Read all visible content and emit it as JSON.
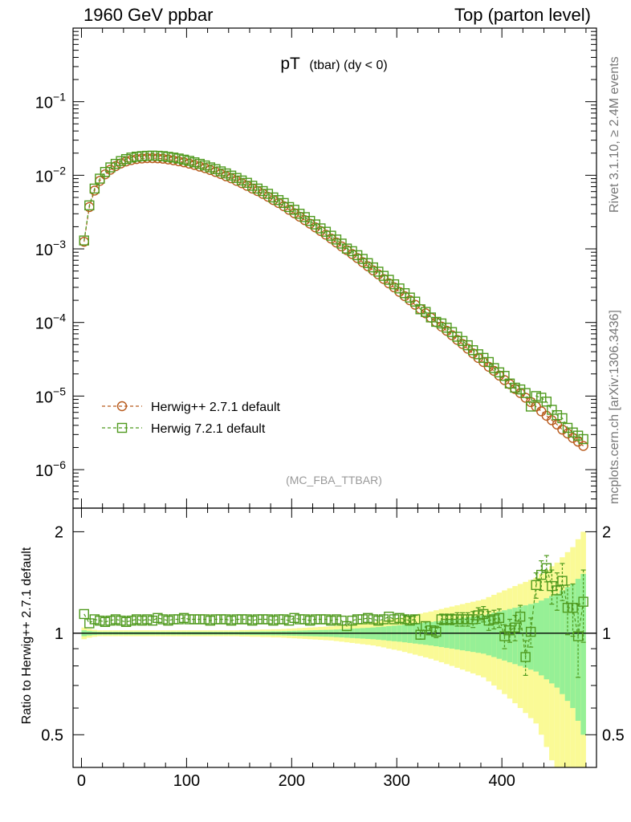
{
  "header": {
    "left": "1960 GeV ppbar",
    "right": "Top (parton level)"
  },
  "side_labels": {
    "rivet": "Rivet 3.1.10, ≥ 2.4M events",
    "mcplots": "mcplots.cern.ch [arXiv:1306.3436]"
  },
  "chart_data": {
    "type": "line",
    "title": {
      "main": "pT",
      "sub": "(tbar) (dy < 0)"
    },
    "watermark": "(MC_FBA_TTBAR)",
    "main_panel": {
      "yscale": "log",
      "ylim": [
        3e-07,
        1.0
      ],
      "ytick_values": [
        1e-06,
        1e-05,
        0.0001,
        0.001,
        0.01,
        0.1
      ],
      "ytick_labels": [
        {
          "base": "10",
          "exp": "−6"
        },
        {
          "base": "10",
          "exp": "−5"
        },
        {
          "base": "10",
          "exp": "−4"
        },
        {
          "base": "10",
          "exp": "−3"
        },
        {
          "base": "10",
          "exp": "−2"
        },
        {
          "base": "10",
          "exp": "−1"
        }
      ]
    },
    "ratio_panel": {
      "ylabel": "Ratio to Herwig++ 2.7.1 default",
      "yscale": "log",
      "ylim": [
        0.4,
        2.35
      ],
      "ytick_values": [
        0.5,
        1,
        2
      ],
      "ytick_labels": [
        "0.5",
        "1",
        "2"
      ]
    },
    "xaxis": {
      "xlim": [
        -8,
        490
      ],
      "tick_values": [
        0,
        100,
        200,
        300,
        400
      ],
      "tick_labels": [
        "0",
        "100",
        "200",
        "300",
        "400"
      ]
    },
    "colors": {
      "herwigpp": "#b85a1c",
      "herwig7": "#4f9a1e",
      "band_yellow": "#fafa96",
      "band_green": "#96f096"
    },
    "series": [
      {
        "name": "Herwig++ 2.7.1 default",
        "marker": "circle"
      },
      {
        "name": "Herwig 7.2.1 default",
        "marker": "square"
      }
    ],
    "x": [
      2.5,
      7.5,
      12.5,
      17.5,
      22.5,
      27.5,
      32.5,
      37.5,
      42.5,
      47.5,
      52.5,
      57.5,
      62.5,
      67.5,
      72.5,
      77.5,
      82.5,
      87.5,
      92.5,
      97.5,
      102.5,
      107.5,
      112.5,
      117.5,
      122.5,
      127.5,
      132.5,
      137.5,
      142.5,
      147.5,
      152.5,
      157.5,
      162.5,
      167.5,
      172.5,
      177.5,
      182.5,
      187.5,
      192.5,
      197.5,
      202.5,
      207.5,
      212.5,
      217.5,
      222.5,
      227.5,
      232.5,
      237.5,
      242.5,
      247.5,
      252.5,
      257.5,
      262.5,
      267.5,
      272.5,
      277.5,
      282.5,
      287.5,
      292.5,
      297.5,
      302.5,
      307.5,
      312.5,
      317.5,
      322.5,
      327.5,
      332.5,
      337.5,
      342.5,
      347.5,
      352.5,
      357.5,
      362.5,
      367.5,
      372.5,
      377.5,
      382.5,
      387.5,
      392.5,
      397.5,
      402.5,
      407.5,
      412.5,
      417.5,
      422.5,
      427.5,
      432.5,
      437.5,
      442.5,
      447.5,
      452.5,
      457.5,
      462.5,
      467.5,
      472.5,
      477.5
    ],
    "herwigpp_values": [
      0.00125,
      0.0037,
      0.0062,
      0.0084,
      0.0103,
      0.0119,
      0.0133,
      0.0145,
      0.0154,
      0.0161,
      0.0166,
      0.0169,
      0.0171,
      0.0171,
      0.017,
      0.0168,
      0.0164,
      0.016,
      0.0155,
      0.015,
      0.0144,
      0.0138,
      0.0131,
      0.0125,
      0.0118,
      0.0111,
      0.0104,
      0.0097,
      0.0091,
      0.0084,
      0.0078,
      0.0072,
      0.0066,
      0.0061,
      0.0056,
      0.0051,
      0.0046,
      0.0042,
      0.0038,
      0.0034,
      0.00305,
      0.00274,
      0.00246,
      0.0022,
      0.00196,
      0.00175,
      0.00156,
      0.00138,
      0.00122,
      0.00108,
      0.00096,
      0.00085,
      0.00075,
      0.00066,
      0.00058,
      0.00051,
      0.00045,
      0.00039,
      0.00034,
      0.0003,
      0.00026,
      0.000228,
      0.0002,
      0.000174,
      0.000152,
      0.000133,
      0.000116,
      0.000101,
      8.8e-05,
      7.7e-05,
      6.7e-05,
      5.8e-05,
      5.1e-05,
      4.4e-05,
      3.8e-05,
      3.3e-05,
      2.9e-05,
      2.5e-05,
      2.2e-05,
      1.9e-05,
      1.65e-05,
      1.45e-05,
      1.25e-05,
      1.1e-05,
      9.5e-06,
      8.3e-06,
      7.2e-06,
      6.2e-06,
      5.4e-06,
      4.7e-06,
      4.1e-06,
      3.5e-06,
      3.1e-06,
      2.7e-06,
      2.4e-06,
      2.1e-06
    ],
    "herwig7_values": [
      0.0013,
      0.0039,
      0.0066,
      0.009,
      0.0111,
      0.0128,
      0.0143,
      0.0156,
      0.0166,
      0.0174,
      0.0179,
      0.0182,
      0.0184,
      0.0185,
      0.0184,
      0.0182,
      0.0178,
      0.0174,
      0.0169,
      0.0163,
      0.0157,
      0.015,
      0.0143,
      0.0136,
      0.0128,
      0.0121,
      0.0113,
      0.0106,
      0.0099,
      0.0092,
      0.0085,
      0.0079,
      0.0072,
      0.0066,
      0.0061,
      0.0056,
      0.005,
      0.0046,
      0.0042,
      0.0037,
      0.0034,
      0.003,
      0.0027,
      0.0024,
      0.00215,
      0.0019,
      0.00171,
      0.00151,
      0.00134,
      0.00118,
      0.00101,
      0.00093,
      0.00082,
      0.00073,
      0.00064,
      0.00056,
      0.00049,
      0.00043,
      0.00038,
      0.00033,
      0.00029,
      0.00025,
      0.000218,
      0.000192,
      0.000151,
      0.000139,
      0.000117,
      0.000102,
      9.7e-05,
      8.5e-05,
      7.4e-05,
      6.4e-05,
      5.6e-05,
      4.9e-05,
      4.2e-05,
      3.7e-05,
      3.3e-05,
      2.9e-05,
      2.4e-05,
      2.1e-05,
      1.88e-05,
      1.48e-05,
      1.3e-05,
      1.23e-05,
      1.1e-05,
      7.2e-06,
      1e-05,
      9.5e-06,
      8.4e-06,
      6.5e-06,
      5.5e-06,
      5e-06,
      3.7e-06,
      3.2e-06,
      2.9e-06,
      2.6e-06
    ],
    "ratio_values": [
      1.14,
      1.07,
      1.1,
      1.09,
      1.08,
      1.09,
      1.1,
      1.09,
      1.08,
      1.09,
      1.1,
      1.09,
      1.1,
      1.09,
      1.11,
      1.1,
      1.09,
      1.1,
      1.1,
      1.11,
      1.1,
      1.1,
      1.1,
      1.1,
      1.09,
      1.1,
      1.1,
      1.1,
      1.09,
      1.1,
      1.1,
      1.1,
      1.09,
      1.1,
      1.1,
      1.1,
      1.09,
      1.1,
      1.1,
      1.09,
      1.11,
      1.1,
      1.1,
      1.09,
      1.1,
      1.1,
      1.1,
      1.09,
      1.1,
      1.09,
      1.05,
      1.09,
      1.1,
      1.1,
      1.11,
      1.1,
      1.09,
      1.1,
      1.12,
      1.1,
      1.11,
      1.1,
      1.09,
      1.1,
      0.99,
      1.05,
      1.02,
      1.01,
      1.1,
      1.1,
      1.1,
      1.1,
      1.1,
      1.1,
      1.1,
      1.13,
      1.14,
      1.09,
      1.1,
      1.11,
      0.98,
      1.02,
      1.04,
      1.12,
      0.85,
      1.01,
      1.39,
      1.49,
      1.56,
      1.38,
      1.34,
      1.43,
      1.19,
      1.19,
      0.98,
      1.24
    ],
    "ratio_errors": [
      0.01,
      0.01,
      0.01,
      0.01,
      0.01,
      0.01,
      0.01,
      0.01,
      0.01,
      0.01,
      0.01,
      0.01,
      0.01,
      0.01,
      0.01,
      0.01,
      0.01,
      0.01,
      0.01,
      0.01,
      0.01,
      0.01,
      0.01,
      0.01,
      0.01,
      0.01,
      0.01,
      0.01,
      0.01,
      0.01,
      0.01,
      0.01,
      0.01,
      0.01,
      0.01,
      0.01,
      0.01,
      0.01,
      0.01,
      0.01,
      0.01,
      0.01,
      0.01,
      0.01,
      0.01,
      0.01,
      0.01,
      0.01,
      0.01,
      0.01,
      0.02,
      0.02,
      0.02,
      0.02,
      0.02,
      0.02,
      0.02,
      0.02,
      0.02,
      0.02,
      0.02,
      0.03,
      0.03,
      0.03,
      0.03,
      0.03,
      0.03,
      0.04,
      0.04,
      0.04,
      0.04,
      0.05,
      0.05,
      0.05,
      0.06,
      0.06,
      0.06,
      0.07,
      0.07,
      0.07,
      0.08,
      0.08,
      0.09,
      0.09,
      0.1,
      0.1,
      0.12,
      0.15,
      0.14,
      0.16,
      0.17,
      0.18,
      0.2,
      0.21,
      0.24,
      0.3
    ],
    "band_half_width": [
      0.02,
      0.015,
      0.012,
      0.01,
      0.01,
      0.01,
      0.01,
      0.01,
      0.01,
      0.01,
      0.01,
      0.01,
      0.01,
      0.01,
      0.01,
      0.01,
      0.01,
      0.01,
      0.01,
      0.01,
      0.01,
      0.01,
      0.01,
      0.01,
      0.01,
      0.01,
      0.01,
      0.01,
      0.01,
      0.01,
      0.011,
      0.011,
      0.012,
      0.012,
      0.013,
      0.013,
      0.014,
      0.014,
      0.015,
      0.016,
      0.017,
      0.018,
      0.019,
      0.02,
      0.021,
      0.022,
      0.023,
      0.024,
      0.026,
      0.028,
      0.03,
      0.032,
      0.034,
      0.036,
      0.038,
      0.04,
      0.043,
      0.046,
      0.05,
      0.053,
      0.056,
      0.06,
      0.064,
      0.068,
      0.072,
      0.076,
      0.08,
      0.085,
      0.09,
      0.095,
      0.1,
      0.105,
      0.11,
      0.115,
      0.12,
      0.125,
      0.13,
      0.14,
      0.15,
      0.16,
      0.17,
      0.18,
      0.19,
      0.2,
      0.21,
      0.22,
      0.23,
      0.25,
      0.27,
      0.29,
      0.31,
      0.34,
      0.37,
      0.4,
      0.45,
      0.5
    ]
  }
}
